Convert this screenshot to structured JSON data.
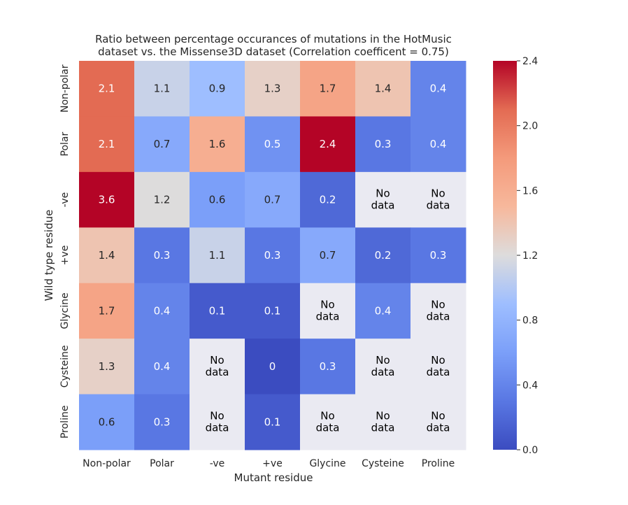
{
  "chart_data": {
    "type": "heatmap",
    "title_lines": [
      "Ratio between percentage occurances of mutations in the HotMusic",
      "dataset vs. the Missense3D dataset (Correlation coefficent = 0.75)"
    ],
    "xlabel": "Mutant residue",
    "ylabel": "Wild type residue",
    "x_categories": [
      "Non-polar",
      "Polar",
      "-ve",
      "+ve",
      "Glycine",
      "Cysteine",
      "Proline"
    ],
    "y_categories": [
      "Non-polar",
      "Polar",
      "-ve",
      "+ve",
      "Glycine",
      "Cysteine",
      "Proline"
    ],
    "values": [
      [
        2.1,
        1.1,
        0.9,
        1.3,
        1.7,
        1.4,
        0.4
      ],
      [
        2.1,
        0.7,
        1.6,
        0.5,
        2.4,
        0.3,
        0.4
      ],
      [
        3.6,
        1.2,
        0.6,
        0.7,
        0.2,
        null,
        null
      ],
      [
        1.4,
        0.3,
        1.1,
        0.3,
        0.7,
        0.2,
        0.3
      ],
      [
        1.7,
        0.4,
        0.1,
        0.1,
        null,
        0.4,
        null
      ],
      [
        1.3,
        0.4,
        null,
        0,
        0.3,
        null,
        null
      ],
      [
        0.6,
        0.3,
        null,
        0.1,
        null,
        null,
        null
      ]
    ],
    "missing_label": "No\ndata",
    "missing_color": "#eaeaf2",
    "colormap": "coolwarm",
    "colorbar": {
      "range": [
        0,
        2.4
      ],
      "ticks": [
        "0.0",
        "0.4",
        "0.8",
        "1.2",
        "1.6",
        "2.0",
        "2.4"
      ]
    }
  }
}
